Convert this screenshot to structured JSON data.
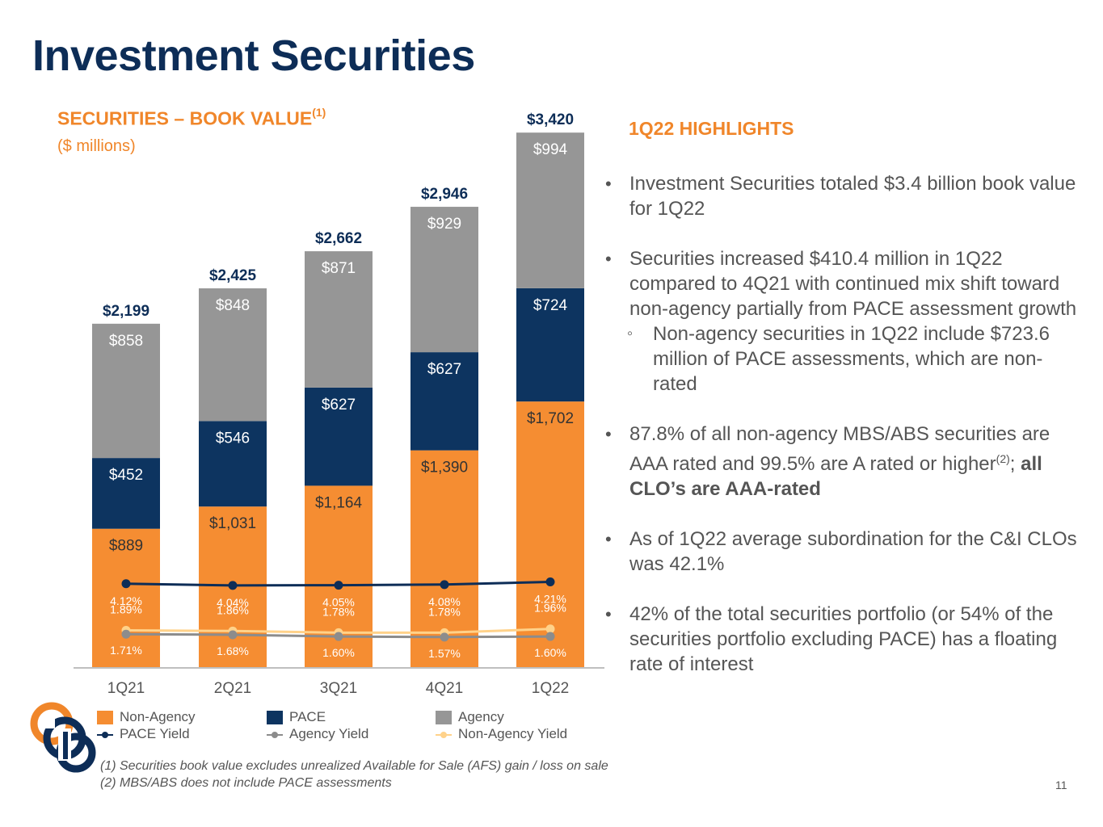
{
  "page": {
    "title": "Investment Securities",
    "page_number": "11"
  },
  "chart": {
    "title": "SECURITIES – BOOK VALUE",
    "title_sup": "(1)",
    "subtitle": "($ millions)"
  },
  "legend": [
    {
      "label": "Non-Agency",
      "kind": "box",
      "color": "#f58d32"
    },
    {
      "label": "PACE",
      "kind": "box",
      "color": "#0d3460"
    },
    {
      "label": "Agency",
      "kind": "box",
      "color": "#969696"
    },
    {
      "label": "PACE Yield",
      "kind": "line",
      "color": "#0d2d57"
    },
    {
      "label": "Agency Yield",
      "kind": "line",
      "color": "#8c8c8c"
    },
    {
      "label": "Non-Agency Yield",
      "kind": "line",
      "color": "#ffd28a"
    }
  ],
  "footnotes": {
    "note1": "(1) Securities book value excludes unrealized Available for Sale (AFS) gain / loss on sale",
    "note2": "(2) MBS/ABS does not include PACE assessments"
  },
  "highlights": {
    "title": "1Q22 HIGHLIGHTS",
    "bullet1": "Investment Securities totaled $3.4 billion book value for 1Q22",
    "bullet2": "Securities increased $410.4 million in 1Q22 compared to 4Q21 with continued mix shift toward non-agency partially from PACE assessment growth",
    "sub_bullet": "Non-agency securities in 1Q22 include $723.6 million of PACE assessments, which are non-rated",
    "bullet3_text": "87.8% of all non-agency MBS/ABS securities are AAA rated and 99.5% are A rated or higher",
    "bullet3_sup": "(2)",
    "bullet3_sep": "; ",
    "bullet3_bold": "all CLO’s are AAA-rated",
    "bullet4": "As of 1Q22 average subordination for the C&I CLOs was 42.1%",
    "bullet5": "42% of the total securities portfolio (or 54% of the securities portfolio excluding PACE) has a floating rate of interest"
  },
  "colors": {
    "non_agency": "#f58d32",
    "pace": "#0d3460",
    "agency": "#969696",
    "pace_yield": "#0d2d57",
    "agency_yield": "#8c8c8c",
    "non_agency_yield": "#ffd28a",
    "total_label": "#0d2d57"
  },
  "chart_data": {
    "type": "bar",
    "stacked": true,
    "categories": [
      "1Q21",
      "2Q21",
      "3Q21",
      "4Q21",
      "1Q22"
    ],
    "series": [
      {
        "name": "Non-Agency",
        "values": [
          889,
          1031,
          1164,
          1390,
          1702
        ],
        "labels": [
          "$889",
          "$1,031",
          "$1,164",
          "$1,390",
          "$1,702"
        ]
      },
      {
        "name": "PACE",
        "values": [
          452,
          546,
          627,
          627,
          724
        ],
        "labels": [
          "$452",
          "$546",
          "$627",
          "$627",
          "$724"
        ]
      },
      {
        "name": "Agency",
        "values": [
          858,
          848,
          871,
          929,
          994
        ],
        "labels": [
          "$858",
          "$848",
          "$871",
          "$929",
          "$994"
        ]
      }
    ],
    "totals": [
      2199,
      2425,
      2662,
      2946,
      3420
    ],
    "total_labels": [
      "$2,199",
      "$2,425",
      "$2,662",
      "$2,946",
      "$3,420"
    ],
    "line_series": [
      {
        "name": "PACE Yield",
        "values": [
          4.12,
          4.04,
          4.05,
          4.08,
          4.21
        ],
        "labels": [
          "4.12%",
          "4.04%",
          "4.05%",
          "4.08%",
          "4.21%"
        ]
      },
      {
        "name": "Non-Agency Yield",
        "values": [
          1.89,
          1.86,
          1.78,
          1.78,
          1.96
        ],
        "labels": [
          "1.89%",
          "1.86%",
          "1.78%",
          "1.78%",
          "1.96%"
        ]
      },
      {
        "name": "Agency Yield",
        "values": [
          1.71,
          1.68,
          1.6,
          1.57,
          1.6
        ],
        "labels": [
          "1.71%",
          "1.68%",
          "1.60%",
          "1.57%",
          "1.60%"
        ]
      }
    ],
    "legend_position": "bottom",
    "grid": false
  }
}
